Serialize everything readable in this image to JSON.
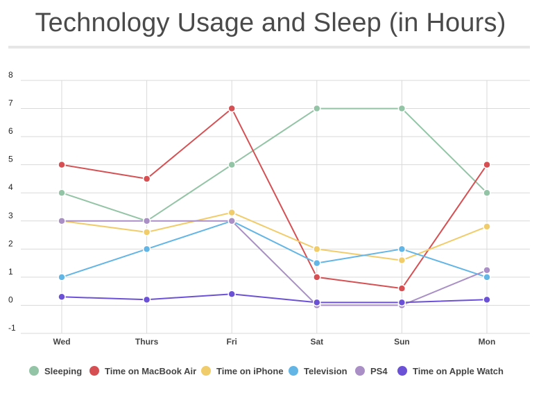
{
  "chart_data": {
    "type": "line",
    "title": "Technology Usage and Sleep (in Hours)",
    "xlabel": "",
    "ylabel": "",
    "categories": [
      "Wed",
      "Thurs",
      "Fri",
      "Sat",
      "Sun",
      "Mon"
    ],
    "ylim": [
      -1,
      8
    ],
    "yticks": [
      "8",
      "7",
      "6",
      "5",
      "4",
      "3",
      "2",
      "1",
      "0",
      "-1"
    ],
    "grid": true,
    "legend_position": "bottom",
    "series": [
      {
        "name": "Sleeping",
        "color": "#93c4a5",
        "values": [
          4,
          3,
          5,
          7,
          7,
          4
        ]
      },
      {
        "name": "Time on MacBook Air",
        "color": "#d64f52",
        "values": [
          5,
          4.5,
          7,
          1,
          0.6,
          5
        ]
      },
      {
        "name": "Time on iPhone",
        "color": "#f0cc6b",
        "values": [
          3,
          2.6,
          3.3,
          2,
          1.6,
          2.8
        ]
      },
      {
        "name": "Television",
        "color": "#62b5e5",
        "values": [
          1,
          2,
          3,
          1.5,
          2,
          1
        ]
      },
      {
        "name": "PS4",
        "color": "#a98fc6",
        "values": [
          3,
          3,
          3,
          0,
          0,
          1.25
        ]
      },
      {
        "name": "Time on Apple Watch",
        "color": "#6b51d6",
        "values": [
          0.3,
          0.2,
          0.4,
          0.1,
          0.1,
          0.2
        ]
      }
    ]
  }
}
